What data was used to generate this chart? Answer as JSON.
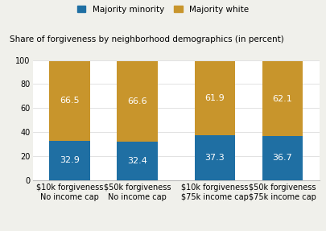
{
  "categories": [
    "$10k forgiveness\nNo income cap",
    "$50k forgiveness\nNo income cap",
    "$10k forgiveness\n$75k income cap",
    "$50k forgiveness\n$75k income cap"
  ],
  "majority_minority": [
    32.9,
    32.4,
    37.3,
    36.7
  ],
  "majority_white": [
    66.5,
    66.6,
    61.9,
    62.1
  ],
  "color_minority": "#1f6fa3",
  "color_white": "#c8952c",
  "title": "Share of forgiveness by neighborhood demographics (in percent)",
  "legend_minority": "Majority minority",
  "legend_white": "Majority white",
  "ylim": [
    0,
    100
  ],
  "yticks": [
    0,
    20,
    40,
    60,
    80,
    100
  ],
  "bar_width": 0.6,
  "title_fontsize": 7.5,
  "legend_fontsize": 7.5,
  "tick_fontsize": 7.0,
  "value_fontsize": 8.0,
  "plot_bg": "#ffffff",
  "fig_bg": "#f0f0eb"
}
